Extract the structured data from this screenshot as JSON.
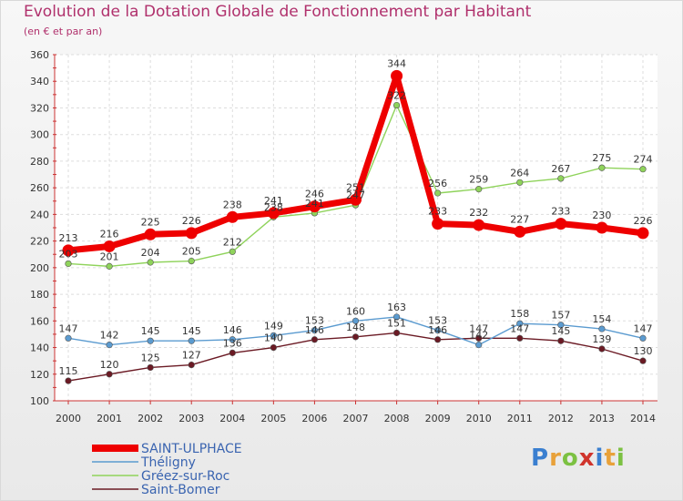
{
  "chart_data": {
    "type": "line",
    "title": "Evolution de la Dotation Globale de Fonctionnement par Habitant",
    "subtitle": "(en € et par an)",
    "categories": [
      "2000",
      "2001",
      "2002",
      "2003",
      "2004",
      "2005",
      "2006",
      "2007",
      "2008",
      "2009",
      "2010",
      "2011",
      "2012",
      "2013",
      "2014"
    ],
    "ylim": [
      100,
      360
    ],
    "yticks": [
      100,
      120,
      140,
      160,
      180,
      200,
      220,
      240,
      260,
      280,
      300,
      320,
      340,
      360
    ],
    "series": [
      {
        "name": "Saint-Bomer",
        "color": "#6b1a24",
        "values": [
          115,
          120,
          125,
          127,
          136,
          140,
          146,
          148,
          151,
          146,
          147,
          147,
          145,
          139,
          130
        ]
      },
      {
        "name": "Gréez-sur-Roc",
        "color": "#8fd35b",
        "values": [
          203,
          201,
          204,
          205,
          212,
          238,
          241,
          247,
          322,
          256,
          259,
          264,
          267,
          275,
          274
        ]
      },
      {
        "name": "Théligny",
        "color": "#5b9bd0",
        "values": [
          147,
          142,
          145,
          145,
          146,
          149,
          153,
          160,
          163,
          153,
          142,
          158,
          157,
          154,
          147
        ]
      },
      {
        "name": "SAINT-ULPHACE",
        "color": "#ee0000",
        "values": [
          213,
          216,
          225,
          226,
          238,
          241,
          246,
          251,
          344,
          233,
          232,
          227,
          233,
          230,
          226
        ]
      }
    ],
    "legend": [
      "SAINT-ULPHACE",
      "Théligny",
      "Gréez-sur-Roc",
      "Saint-Bomer"
    ],
    "legend_position": "bottom-left"
  },
  "brand": {
    "letters": [
      "P",
      "r",
      "o",
      "x",
      "i",
      "t",
      "i"
    ],
    "colors": [
      "#3a7fd0",
      "#e8a13a",
      "#7cc142",
      "#d0342c",
      "#3a7fd0",
      "#e8a13a",
      "#7cc142"
    ]
  }
}
